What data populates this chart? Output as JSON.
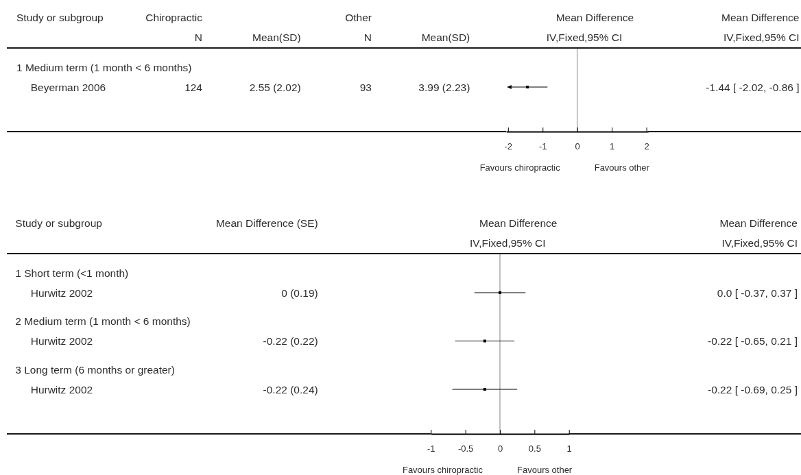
{
  "chart_data": [
    {
      "type": "scatter",
      "orientation": "horizontal",
      "color": "#000000",
      "marker": "square",
      "categories": [
        null
      ],
      "values": [
        -1.44
      ],
      "errors": [
        [
          -2.02,
          -0.86
        ]
      ],
      "xlim": [
        -2.05,
        2.05
      ],
      "xticks": [
        -2,
        -1,
        0,
        1,
        2
      ],
      "ref_lines": [
        {
          "axis": "x",
          "value": 0,
          "color": "#808080"
        }
      ],
      "annotations": [
        "Study or subgroup",
        "Chiropractic",
        "N",
        "Mean(SD)",
        "Other",
        "N",
        "Mean(SD)",
        "Mean Difference",
        "IV,Fixed,95% CI",
        "Mean Difference",
        "IV,Fixed,95% CI",
        "1 Medium term (1 month < 6 months)",
        "Beyerman 2006",
        "124",
        "2.55 (2.02)",
        "93",
        "3.99 (2.23)",
        "-1.44 [ -2.02, -0.86 ]",
        "Favours chiropractic",
        "Favours other"
      ]
    },
    {
      "type": "scatter",
      "orientation": "horizontal",
      "color": "#000000",
      "marker": "square",
      "categories": [
        null,
        null,
        null
      ],
      "values": [
        0.0,
        -0.22,
        -0.22
      ],
      "errors": [
        [
          -0.37,
          0.37
        ],
        [
          -0.65,
          0.21
        ],
        [
          -0.69,
          0.25
        ]
      ],
      "value_labels": [
        "0.0 [ -0.37, 0.37 ]",
        "-0.22 [ -0.65, 0.21 ]",
        "-0.22 [ -0.69, 0.25 ]"
      ],
      "xlim": [
        -1,
        1
      ],
      "xticks": [
        -1,
        -0.5,
        0,
        0.5,
        1
      ],
      "ref_lines": [
        {
          "axis": "x",
          "value": 0,
          "color": "#808080"
        }
      ],
      "annotations": [
        "Study or subgroup",
        "Mean Difference (SE)",
        "Mean Difference",
        "IV,Fixed,95% CI",
        "Mean Difference",
        "IV,Fixed,95% CI",
        "1 Short term (<1 month)",
        "Hurwitz 2002",
        "0 (0.19)",
        "2 Medium term (1 month < 6 months)",
        "Hurwitz 2002",
        "-0.22 (0.22)",
        "3 Long term (6 months or greater)",
        "Hurwitz 2002",
        "-0.22 (0.24)",
        "Favours chiropractic",
        "Favours other"
      ]
    }
  ]
}
